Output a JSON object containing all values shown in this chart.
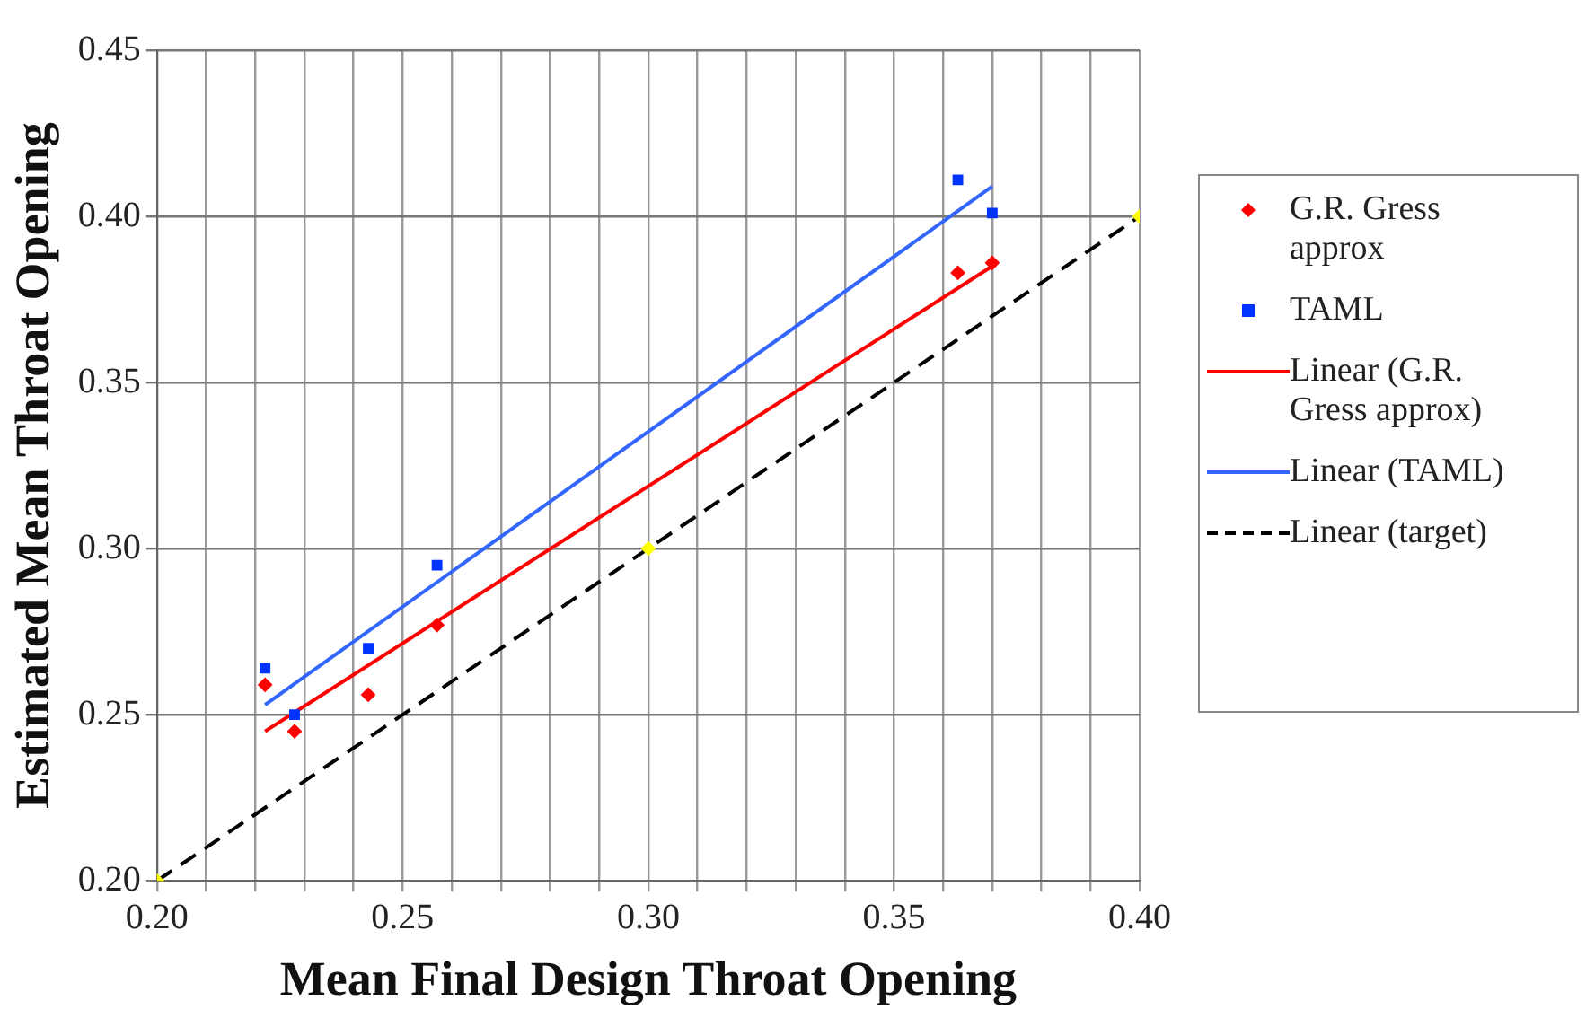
{
  "chart_data": {
    "type": "scatter",
    "xlabel": "Mean Final Design Throat Opening",
    "ylabel": "Estimated Mean Throat Opening",
    "xlim": [
      0.2,
      0.4
    ],
    "ylim": [
      0.2,
      0.45
    ],
    "xticks": [
      "0.20",
      {
        "value": 0.21,
        "label": null
      },
      {
        "value": 0.22,
        "label": null
      },
      {
        "value": 0.23,
        "label": null
      },
      {
        "value": 0.24,
        "label": null
      },
      {
        "value": 0.25,
        "label": "0.25"
      },
      {
        "value": 0.26,
        "label": null
      },
      {
        "value": 0.27,
        "label": null
      },
      {
        "value": 0.28,
        "label": null
      },
      {
        "value": 0.29,
        "label": null
      },
      {
        "value": 0.3,
        "label": "0.30"
      },
      {
        "value": 0.31,
        "label": null
      },
      {
        "value": 0.32,
        "label": null
      },
      {
        "value": 0.33,
        "label": null
      },
      {
        "value": 0.34,
        "label": null
      },
      {
        "value": 0.35,
        "label": "0.35"
      },
      {
        "value": 0.36,
        "label": null
      },
      {
        "value": 0.37,
        "label": null
      },
      {
        "value": 0.38,
        "label": null
      },
      {
        "value": 0.39,
        "label": null
      },
      {
        "value": 0.4,
        "label": "0.40"
      }
    ],
    "yticks": [
      {
        "value": 0.2,
        "label": "0.20"
      },
      {
        "value": 0.25,
        "label": "0.25"
      },
      {
        "value": 0.3,
        "label": "0.30"
      },
      {
        "value": 0.35,
        "label": "0.35"
      },
      {
        "value": 0.4,
        "label": "0.40"
      },
      {
        "value": 0.45,
        "label": "0.45"
      }
    ],
    "grid": true,
    "legend": "right",
    "series": [
      {
        "name": "G.R. Gress approx",
        "marker": "diamond",
        "color": "#ff0000",
        "x": [
          0.222,
          0.228,
          0.243,
          0.257,
          0.363,
          0.37
        ],
        "values": [
          0.259,
          0.245,
          0.256,
          0.277,
          0.383,
          0.386
        ]
      },
      {
        "name": "TAML",
        "marker": "square",
        "color": "#0033ff",
        "x": [
          0.222,
          0.228,
          0.243,
          0.257,
          0.363,
          0.37
        ],
        "values": [
          0.264,
          0.25,
          0.27,
          0.295,
          0.411,
          0.401
        ]
      },
      {
        "marker": "diamond",
        "color": "#ffff00",
        "x": [
          0.2,
          0.3,
          0.4
        ],
        "values": [
          0.2,
          0.3,
          0.4
        ]
      },
      {
        "name": "Linear (G.R. Gress approx)",
        "type": "line",
        "marker": "none",
        "line_style": "solid",
        "color": "#ff0000",
        "x": [
          0.222,
          0.37
        ],
        "values": [
          0.245,
          0.385
        ]
      },
      {
        "name": "Linear (TAML)",
        "type": "line",
        "marker": "none",
        "line_style": "solid",
        "color": "#3366ff",
        "x": [
          0.222,
          0.37
        ],
        "values": [
          0.253,
          0.409
        ]
      },
      {
        "name": "Linear (target)",
        "type": "line",
        "marker": "none",
        "line_style": "dashed",
        "color": "#000000",
        "x": [
          0.2,
          0.4
        ],
        "values": [
          0.2,
          0.4
        ]
      }
    ]
  }
}
